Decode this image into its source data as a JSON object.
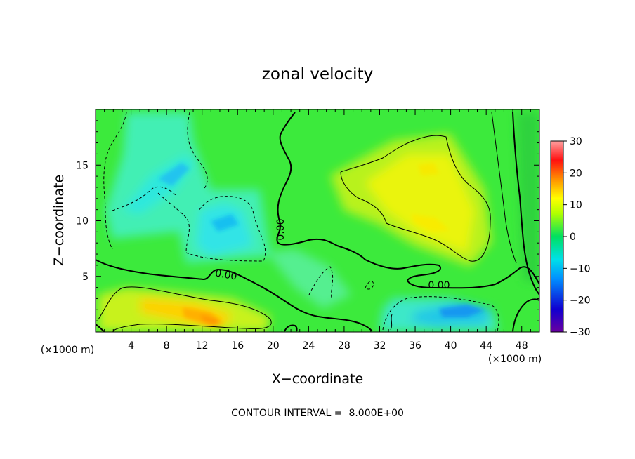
{
  "chart_data": {
    "type": "heatmap",
    "title": "zonal velocity",
    "xlabel": "X−coordinate",
    "ylabel": "Z−coordinate",
    "x_unit_left": "(×1000 m)",
    "x_unit_right": "(×1000 m)",
    "xlim": [
      0,
      50
    ],
    "ylim": [
      0,
      20
    ],
    "x_ticks": [
      4,
      8,
      12,
      16,
      20,
      24,
      28,
      32,
      36,
      40,
      44,
      48
    ],
    "y_ticks": [
      5,
      10,
      15
    ],
    "colorbar": {
      "range": [
        -30,
        30
      ],
      "ticks": [
        30,
        20,
        10,
        0,
        -10,
        -20,
        -30
      ],
      "tick_labels": [
        "30",
        "20",
        "10",
        "0",
        "−10",
        "−20",
        "−30"
      ]
    },
    "contour_interval": 8.0,
    "contour_labels": [
      {
        "text": "0.00",
        "x": 20.7,
        "z": 9.3,
        "rotate": -90
      },
      {
        "text": "0.00",
        "x": 14.5,
        "z": 4.9,
        "rotate": 10
      },
      {
        "text": "0.00",
        "x": 39.0,
        "z": 4.2,
        "rotate": 0
      }
    ],
    "features": [
      {
        "sign": "negative",
        "x": 9.0,
        "z": 14.0,
        "value": -8
      },
      {
        "sign": "negative",
        "x": 14.5,
        "z": 9.5,
        "value": -9
      },
      {
        "sign": "negative",
        "x": 15.0,
        "z": 8.0,
        "value": -6
      },
      {
        "sign": "negative",
        "x": 40.5,
        "z": 1.8,
        "value": -11
      },
      {
        "sign": "negative",
        "x": 35.0,
        "z": 2.3,
        "value": -8
      },
      {
        "sign": "negative",
        "x": 26.0,
        "z": 4.5,
        "value": -3
      },
      {
        "sign": "negative",
        "x": 3.0,
        "z": 17.0,
        "value": -4
      },
      {
        "sign": "positive",
        "x": 13.0,
        "z": 1.5,
        "value": 17
      },
      {
        "sign": "positive",
        "x": 7.0,
        "z": 2.8,
        "value": 12
      },
      {
        "sign": "positive",
        "x": 37.0,
        "z": 14.5,
        "value": 12
      },
      {
        "sign": "positive",
        "x": 38.0,
        "z": 9.7,
        "value": 13
      },
      {
        "sign": "positive",
        "x": 29.0,
        "z": 11.0,
        "value": 6
      },
      {
        "sign": "positive",
        "x": 31.0,
        "z": 17.5,
        "value": 7
      }
    ]
  },
  "footer": "CONTOUR INTERVAL =  8.000E+00"
}
